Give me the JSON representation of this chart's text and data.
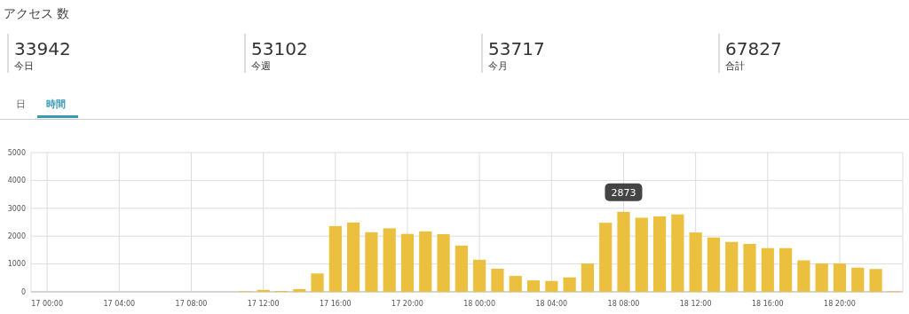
{
  "chart_data": [
    {
      "type": "other",
      "title": "アクセス 数",
      "annotations": [
        "33942",
        "今日",
        "53102",
        "今週",
        "53717",
        "今月",
        "67827",
        "合計",
        "日",
        "時間"
      ]
    },
    {
      "type": "bar",
      "categories": [
        "17 00:00",
        null,
        null,
        null,
        "17 04:00",
        null,
        null,
        null,
        "17 08:00",
        null,
        null,
        null,
        "17 12:00",
        null,
        null,
        null,
        "17 16:00",
        null,
        null,
        null,
        "17 20:00",
        null,
        null,
        null,
        "18 00:00",
        null,
        null,
        null,
        "18 04:00",
        null,
        null,
        null,
        "18 08:00",
        null,
        null,
        null,
        "18 12:00",
        null,
        null,
        null,
        "18 16:00",
        null,
        null,
        null,
        "18 20:00",
        null,
        null,
        null
      ],
      "values": [
        0,
        0,
        0,
        0,
        0,
        0,
        0,
        0,
        0,
        0,
        0,
        20,
        70,
        30,
        100,
        660,
        2360,
        2490,
        2140,
        2280,
        2080,
        2170,
        2070,
        1660,
        1150,
        830,
        570,
        410,
        390,
        520,
        1020,
        2480,
        2873,
        2660,
        2710,
        2780,
        2130,
        1950,
        1790,
        1720,
        1570,
        1570,
        1130,
        1020,
        1020,
        870,
        820,
        20
      ],
      "color": "#ebc03f",
      "ylim": [
        0,
        5000
      ],
      "yticks": [
        0,
        1000,
        2000,
        3000,
        4000,
        5000
      ],
      "grid": true,
      "annotations": [
        {
          "text": "2873",
          "x": "18 08:00",
          "y": 2873
        }
      ]
    }
  ]
}
